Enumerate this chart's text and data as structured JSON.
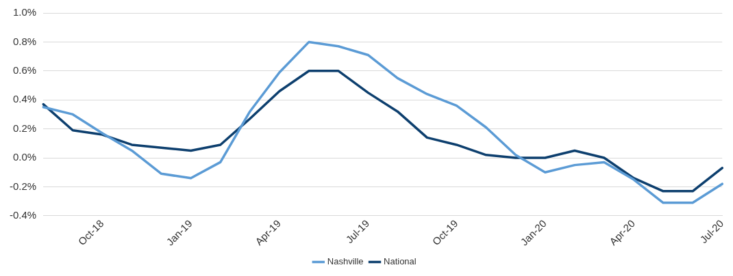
{
  "chart_data": {
    "type": "line",
    "categories": [
      null,
      null,
      "Oct-18",
      null,
      null,
      "Jan-19",
      null,
      null,
      "Apr-19",
      null,
      null,
      "Jul-19",
      null,
      null,
      "Oct-19",
      null,
      null,
      "Jan-20",
      null,
      null,
      "Apr-20",
      null,
      null,
      "Jul-20"
    ],
    "series": [
      {
        "name": "Nashville",
        "color": "#5b9bd5",
        "values": [
          0.35,
          0.3,
          0.17,
          0.05,
          -0.11,
          -0.14,
          -0.03,
          0.32,
          0.59,
          0.8,
          0.77,
          0.71,
          0.55,
          0.44,
          0.36,
          0.21,
          0.02,
          -0.1,
          -0.05,
          -0.03,
          -0.15,
          -0.31,
          -0.31,
          -0.18
        ]
      },
      {
        "name": "National",
        "color": "#0d3f6e",
        "values": [
          0.37,
          0.19,
          0.16,
          0.09,
          0.07,
          0.05,
          0.09,
          0.27,
          0.46,
          0.6,
          0.6,
          0.45,
          0.32,
          0.14,
          0.09,
          0.02,
          0.0,
          0.0,
          0.05,
          0.0,
          -0.14,
          -0.23,
          -0.23,
          -0.07
        ]
      }
    ],
    "ylim": [
      -0.4,
      1.0
    ],
    "yticks": [
      {
        "value": -0.4,
        "label": "-0.4%"
      },
      {
        "value": -0.2,
        "label": "-0.2%"
      },
      {
        "value": 0,
        "label": "0.0%"
      },
      {
        "value": 0.2,
        "label": "0.2%"
      },
      {
        "value": 0.4,
        "label": "0.4%"
      },
      {
        "value": 0.6,
        "label": "0.6%"
      },
      {
        "value": 0.8,
        "label": "0.8%"
      },
      {
        "value": 1.0,
        "label": "1.0%"
      }
    ],
    "grid": "y",
    "legend": "bottom",
    "marker": "none",
    "line_style": "solid"
  }
}
